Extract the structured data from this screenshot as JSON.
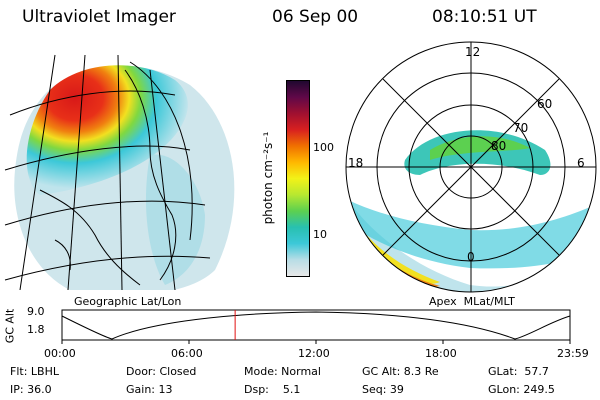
{
  "header": {
    "title": "Ultraviolet Imager",
    "date": "06 Sep 00",
    "time": "08:10:51 UT"
  },
  "left_panel": {
    "caption": "Geographic Lat/Lon"
  },
  "right_panel": {
    "caption": "Apex  MLat/MLT",
    "mlt_labels": {
      "top": "12",
      "left": "18",
      "right": "6",
      "bottom": "0"
    },
    "mlat_labels": {
      "r60": "60",
      "r70": "70",
      "r80": "80"
    }
  },
  "colorbar": {
    "unit_label": "photon cm⁻²s⁻¹",
    "ticks": {
      "t100": "100",
      "t10": "10"
    },
    "colors": [
      "#e8e8e8",
      "#b8dde6",
      "#3cc8d8",
      "#28c0b0",
      "#5cd050",
      "#b8e830",
      "#f2f218",
      "#ffb800",
      "#f07000",
      "#d82020",
      "#a01030",
      "#600848",
      "#200830"
    ]
  },
  "timeline": {
    "ylabel": "GC Alt",
    "y_ticks": {
      "top": "9.0",
      "bottom": "1.8"
    },
    "x_ticks": [
      "00:00",
      "06:00",
      "12:00",
      "18:00",
      "23:59"
    ],
    "current_time_fraction": 0.3408
  },
  "info": {
    "row1": {
      "flt": "Flt: LBHL",
      "door": "Door: Closed",
      "mode": "Mode: Normal",
      "gcalt": "GC Alt: 8.3 Re",
      "glat": "GLat:  57.7"
    },
    "row2": {
      "ip": "IP: 36.0",
      "gain": "Gain: 13",
      "dsp": "Dsp:    5.1",
      "seq": "Seq: 39",
      "glon": "GLon: 249.5"
    }
  }
}
